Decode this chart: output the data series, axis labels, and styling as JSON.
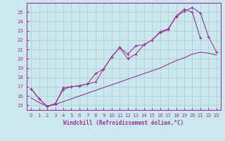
{
  "background_color": "#cce8ef",
  "grid_color": "#aacccc",
  "line_color": "#993399",
  "xlabel": "Windchill (Refroidissement éolien,°C)",
  "ylim": [
    14.5,
    26.0
  ],
  "xlim": [
    -0.5,
    23.5
  ],
  "yticks": [
    15,
    16,
    17,
    18,
    19,
    20,
    21,
    22,
    23,
    24,
    25
  ],
  "xticks": [
    0,
    1,
    2,
    3,
    4,
    5,
    6,
    7,
    8,
    9,
    10,
    11,
    12,
    13,
    14,
    15,
    16,
    17,
    18,
    19,
    20,
    21,
    22,
    23
  ],
  "series1_x": [
    0,
    1,
    2,
    3,
    4,
    5,
    6,
    7,
    8,
    9,
    10,
    11,
    12,
    13,
    14,
    15,
    16,
    17,
    18,
    19,
    20,
    21
  ],
  "series1_y": [
    16.8,
    15.7,
    14.9,
    15.1,
    16.9,
    17.0,
    17.1,
    17.3,
    18.4,
    18.9,
    20.2,
    21.2,
    20.0,
    20.5,
    21.5,
    22.0,
    22.8,
    23.1,
    24.6,
    25.3,
    25.0,
    22.2
  ],
  "series2_x": [
    0,
    1,
    2,
    3,
    4,
    5,
    6,
    7,
    8,
    9,
    10,
    11,
    12,
    13,
    14,
    15,
    16,
    17,
    18,
    19,
    20,
    21,
    22,
    23
  ],
  "series2_y": [
    15.8,
    15.3,
    14.9,
    15.1,
    15.4,
    15.7,
    16.0,
    16.3,
    16.6,
    16.9,
    17.2,
    17.5,
    17.8,
    18.1,
    18.4,
    18.7,
    19.0,
    19.4,
    19.8,
    20.1,
    20.5,
    20.7,
    20.6,
    20.4
  ],
  "series3_x": [
    0,
    1,
    2,
    3,
    4,
    5,
    6,
    7,
    8,
    9,
    10,
    11,
    12,
    13,
    14,
    15,
    16,
    17,
    18,
    19,
    20,
    21,
    22,
    23
  ],
  "series3_y": [
    16.8,
    15.7,
    14.9,
    15.2,
    16.7,
    17.0,
    17.1,
    17.3,
    17.5,
    18.9,
    20.2,
    21.2,
    20.5,
    21.4,
    21.5,
    22.0,
    22.9,
    23.2,
    24.5,
    25.1,
    25.5,
    24.9,
    22.4,
    20.7
  ]
}
